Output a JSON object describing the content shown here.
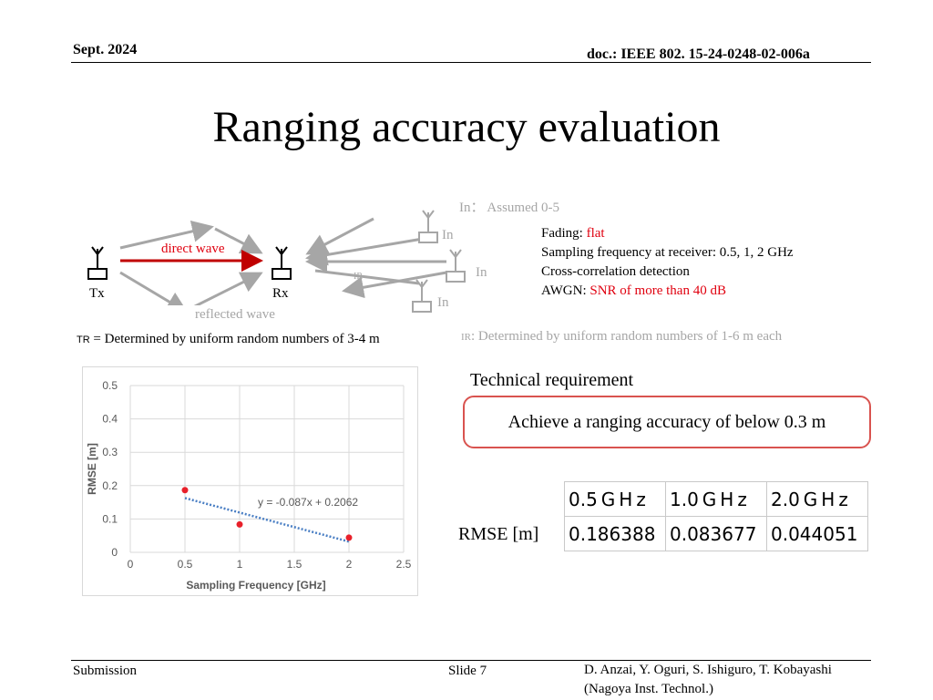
{
  "header": {
    "date": "Sept. 2024",
    "doc": "doc.: IEEE 802. 15-24-0248-02-006a"
  },
  "title": "Ranging accuracy evaluation",
  "diagram": {
    "in_note": "In： Assumed 0-5",
    "in_label": "In",
    "direct_wave": "direct wave",
    "reflected_wave": "reflected wave",
    "tx": "Tx",
    "rx": "Rx",
    "ir_label": "IR",
    "tr_sub": "TR",
    "tr_note": " = Determined by uniform random numbers of 3-4 m",
    "ir_sub": "IR",
    "ir_note": ": Determined by uniform random numbers of 1-6 m each"
  },
  "params": {
    "fading_label": "Fading: ",
    "fading_value": "flat",
    "sampling": "Sampling frequency at receiver: 0.5, 1, 2 GHz",
    "detection": "Cross-correlation detection",
    "awgn_label": "AWGN: ",
    "awgn_value": "SNR of more than 40 dB"
  },
  "requirement": {
    "heading": "Technical requirement",
    "text": "Achieve a ranging accuracy of below 0.3 m"
  },
  "table": {
    "row_label": "RMSE [m]",
    "headers": [
      "0.5 G H z",
      "1.0 G H z",
      "2.0 G H z"
    ],
    "values": [
      "0.186388",
      "0.083677",
      "0.044051"
    ]
  },
  "chart_data": {
    "type": "scatter",
    "x": [
      0.5,
      1.0,
      2.0
    ],
    "y": [
      0.186388,
      0.083677,
      0.044051
    ],
    "xlabel": "Sampling Frequency [GHz]",
    "ylabel": "RMSE [m]",
    "xlim": [
      0,
      2.5
    ],
    "ylim": [
      0,
      0.5
    ],
    "xticks": [
      "0",
      "0.5",
      "1",
      "1.5",
      "2",
      "2.5"
    ],
    "yticks": [
      "0",
      "0.1",
      "0.2",
      "0.3",
      "0.4",
      "0.5"
    ],
    "trendline": {
      "slope": -0.087,
      "intercept": 0.2062,
      "label": "y = -0.087x + 0.2062"
    },
    "grid": true,
    "point_color": "#e8202a",
    "trend_color": "#4a7fc4"
  },
  "footer": {
    "left": "Submission",
    "center": "Slide 7",
    "authors": "D. Anzai, Y. Oguri, S. Ishiguro,  T. Kobayashi",
    "affiliation": "(Nagoya Inst. Technol.)"
  }
}
